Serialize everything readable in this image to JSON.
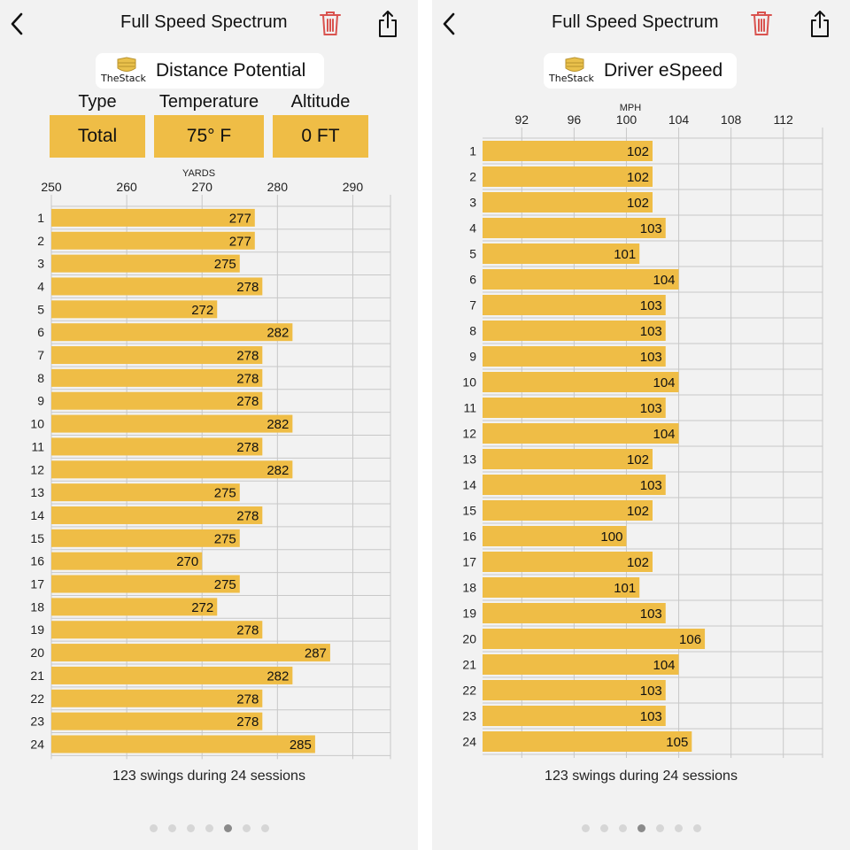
{
  "panels": [
    {
      "nav": {
        "title": "Full Speed Spectrum"
      },
      "logo_text": "TheStack",
      "chart_title": "Distance Potential",
      "params": [
        {
          "label": "Type",
          "value": "Total"
        },
        {
          "label": "Temperature",
          "value": "75° F"
        },
        {
          "label": "Altitude",
          "value": "0 FT"
        }
      ],
      "footer": "123 swings during 24 sessions",
      "pages": {
        "count": 7,
        "active": 4
      }
    },
    {
      "nav": {
        "title": "Full Speed Spectrum"
      },
      "logo_text": "TheStack",
      "chart_title": "Driver eSpeed",
      "footer": "123 swings during 24 sessions",
      "pages": {
        "count": 7,
        "active": 3
      }
    }
  ],
  "colors": {
    "bar": "#efbd46",
    "trash": "#d9534f",
    "grid": "#c8c8c8",
    "logo": "#e9c04b"
  },
  "icons": {
    "back": "chevron-left-icon",
    "trash": "trash-icon",
    "share": "share-icon",
    "logo": "stack-logo-icon"
  },
  "chart_data": [
    {
      "type": "bar",
      "orientation": "horizontal",
      "title": "Distance Potential",
      "xlabel": "YARDS",
      "xlim": [
        250,
        295
      ],
      "ticks": [
        250,
        260,
        270,
        280,
        290
      ],
      "categories": [
        "1",
        "2",
        "3",
        "4",
        "5",
        "6",
        "7",
        "8",
        "9",
        "10",
        "11",
        "12",
        "13",
        "14",
        "15",
        "16",
        "17",
        "18",
        "19",
        "20",
        "21",
        "22",
        "23",
        "24"
      ],
      "values": [
        277,
        277,
        275,
        278,
        272,
        282,
        278,
        278,
        278,
        282,
        278,
        282,
        275,
        278,
        275,
        270,
        275,
        272,
        278,
        287,
        282,
        278,
        278,
        285
      ]
    },
    {
      "type": "bar",
      "orientation": "horizontal",
      "title": "Driver eSpeed",
      "xlabel": "MPH",
      "xlim": [
        89,
        115
      ],
      "ticks": [
        92,
        96,
        100,
        104,
        108,
        112
      ],
      "categories": [
        "1",
        "2",
        "3",
        "4",
        "5",
        "6",
        "7",
        "8",
        "9",
        "10",
        "11",
        "12",
        "13",
        "14",
        "15",
        "16",
        "17",
        "18",
        "19",
        "20",
        "21",
        "22",
        "23",
        "24"
      ],
      "values": [
        102,
        102,
        102,
        103,
        101,
        104,
        103,
        103,
        103,
        104,
        103,
        104,
        102,
        103,
        102,
        100,
        102,
        101,
        103,
        106,
        104,
        103,
        103,
        105
      ]
    }
  ]
}
